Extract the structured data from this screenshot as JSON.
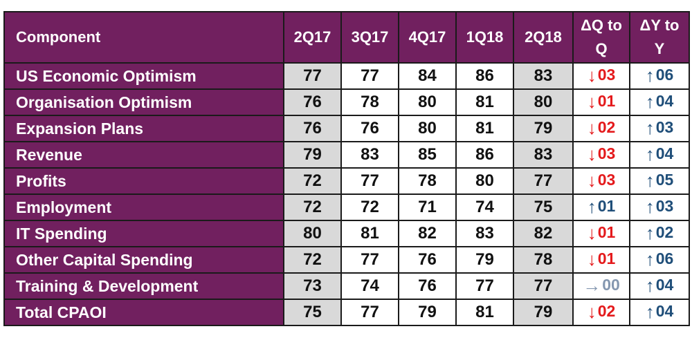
{
  "chart_data": {
    "type": "table",
    "columns": [
      "Component",
      "2Q17",
      "3Q17",
      "4Q17",
      "1Q18",
      "2Q18",
      "ΔQ to Q",
      "ΔY to Y"
    ],
    "rows": [
      {
        "component": "US Economic Optimism",
        "values": [
          "77",
          "77",
          "84",
          "86",
          "83"
        ],
        "dq": {
          "dir": "down",
          "text": "03"
        },
        "dy": {
          "dir": "up",
          "text": "06"
        }
      },
      {
        "component": "Organisation Optimism",
        "values": [
          "76",
          "78",
          "80",
          "81",
          "80"
        ],
        "dq": {
          "dir": "down",
          "text": "01"
        },
        "dy": {
          "dir": "up",
          "text": "04"
        }
      },
      {
        "component": "Expansion Plans",
        "values": [
          "76",
          "76",
          "80",
          "81",
          "79"
        ],
        "dq": {
          "dir": "down",
          "text": "02"
        },
        "dy": {
          "dir": "up",
          "text": "03"
        }
      },
      {
        "component": "Revenue",
        "values": [
          "79",
          "83",
          "85",
          "86",
          "83"
        ],
        "dq": {
          "dir": "down",
          "text": "03"
        },
        "dy": {
          "dir": "up",
          "text": "04"
        }
      },
      {
        "component": "Profits",
        "values": [
          "72",
          "77",
          "78",
          "80",
          "77"
        ],
        "dq": {
          "dir": "down",
          "text": "03"
        },
        "dy": {
          "dir": "up",
          "text": "05"
        }
      },
      {
        "component": "Employment",
        "values": [
          "72",
          "72",
          "71",
          "74",
          "75"
        ],
        "dq": {
          "dir": "up",
          "text": "01"
        },
        "dy": {
          "dir": "up",
          "text": "03"
        }
      },
      {
        "component": "IT Spending",
        "values": [
          "80",
          "81",
          "82",
          "83",
          "82"
        ],
        "dq": {
          "dir": "down",
          "text": "01"
        },
        "dy": {
          "dir": "up",
          "text": "02"
        }
      },
      {
        "component": "Other Capital Spending",
        "values": [
          "72",
          "77",
          "76",
          "79",
          "78"
        ],
        "dq": {
          "dir": "down",
          "text": "01"
        },
        "dy": {
          "dir": "up",
          "text": "06"
        }
      },
      {
        "component": "Training & Development",
        "values": [
          "73",
          "74",
          "76",
          "77",
          "77"
        ],
        "dq": {
          "dir": "flat",
          "text": "00"
        },
        "dy": {
          "dir": "up",
          "text": "04"
        }
      },
      {
        "component": "Total CPAOI",
        "values": [
          "75",
          "77",
          "79",
          "81",
          "79"
        ],
        "dq": {
          "dir": "down",
          "text": "02"
        },
        "dy": {
          "dir": "up",
          "text": "04"
        }
      }
    ],
    "shaded_columns": [
      "2Q17",
      "2Q18"
    ],
    "colors": {
      "header": "#71205f",
      "shade": "#d9d9d9",
      "down": "#e41a1c",
      "up": "#1f4e79",
      "flat": "#8497b0"
    },
    "icons": {
      "down": "red-down-arrow-icon",
      "up": "blue-up-arrow-icon",
      "flat": "grey-right-arrow-icon"
    }
  }
}
